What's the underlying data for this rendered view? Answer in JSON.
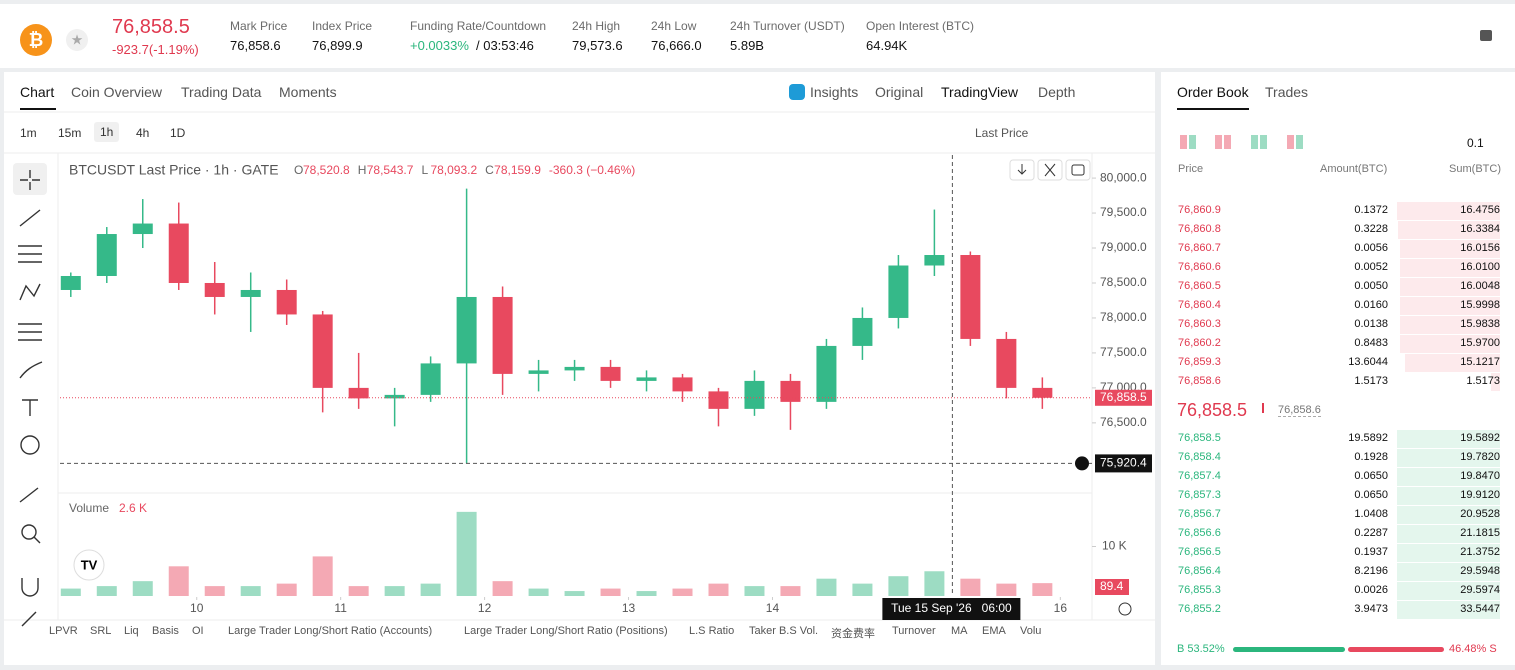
{
  "header": {
    "price": "76,858.5",
    "change": "-923.7(-1.19%)",
    "stats": [
      {
        "label": "Mark Price",
        "value": "76,858.6"
      },
      {
        "label": "Index Price",
        "value": "76,899.9"
      },
      {
        "label": "Funding Rate/Countdown",
        "value": "+0.0033%",
        "extra": " / 03:53:46"
      },
      {
        "label": "24h High",
        "value": "79,573.6"
      },
      {
        "label": "24h Low",
        "value": "76,666.0"
      },
      {
        "label": "24h Turnover (USDT)",
        "value": "5.89B"
      },
      {
        "label": "Open Interest (BTC)",
        "value": "64.94K"
      }
    ]
  },
  "tabs": [
    "Chart",
    "Coin Overview",
    "Trading Data",
    "Moments"
  ],
  "views": [
    "Insights",
    "Original",
    "TradingView",
    "Depth"
  ],
  "intervals": [
    "1m",
    "15m",
    "1h",
    "4h",
    "1D"
  ],
  "price_type": "Last Price",
  "indicators": [
    "LPVR",
    "SRL",
    "Liq",
    "Basis",
    "OI",
    "Large Trader Long/Short Ratio (Accounts)",
    "Large Trader Long/Short Ratio (Positions)",
    "L.S Ratio",
    "Taker B.S Vol.",
    "资金费率",
    "Turnover",
    "MA",
    "EMA",
    "Volu"
  ],
  "chart_data": {
    "type": "candlestick",
    "title": "BTCUSDT Last Price · 1h · GATE",
    "ohlc": [
      {
        "key": "O",
        "value": "78,520.8"
      },
      {
        "key": "H",
        "value": "78,543.7"
      },
      {
        "key": "L",
        "value": "78,093.2"
      },
      {
        "key": "C",
        "value": "78,159.9"
      }
    ],
    "change": "-360.3 (−0.46%)",
    "x": [
      9.125,
      9.375,
      9.625,
      9.875,
      10.125,
      10.375,
      10.625,
      10.875,
      11.125,
      11.375,
      11.625,
      11.875,
      12.125,
      12.375,
      12.625,
      12.875,
      13.125,
      13.375,
      13.625,
      13.875,
      14.125,
      14.375,
      14.625,
      14.875,
      15.125,
      15.375,
      15.625,
      15.875
    ],
    "open": [
      78400,
      78600,
      79200,
      79350,
      78500,
      78300,
      78400,
      78050,
      77000,
      76850,
      76900,
      77350,
      78300,
      77200,
      77250,
      77300,
      77100,
      77150,
      76950,
      76700,
      77100,
      76800,
      77600,
      78000,
      78750,
      78900,
      77700,
      77000
    ],
    "high": [
      78650,
      79300,
      79700,
      79650,
      78800,
      78650,
      78550,
      78100,
      77500,
      77000,
      77450,
      79850,
      78450,
      77400,
      77400,
      77400,
      77250,
      77200,
      77000,
      77250,
      77200,
      77700,
      78150,
      78900,
      79550,
      78950,
      77800,
      77150
    ],
    "low": [
      78300,
      78500,
      79000,
      78400,
      78050,
      77800,
      77900,
      76650,
      76700,
      76450,
      76800,
      75920,
      76900,
      76950,
      77100,
      77000,
      76950,
      76800,
      76450,
      76600,
      76400,
      76700,
      77400,
      77850,
      78600,
      77600,
      76850,
      76700
    ],
    "close": [
      78600,
      79200,
      79350,
      78500,
      78300,
      78400,
      78050,
      77000,
      76850,
      76900,
      77350,
      78300,
      77200,
      77250,
      77300,
      77100,
      77150,
      76950,
      76700,
      77100,
      76800,
      77600,
      78000,
      78750,
      78900,
      77700,
      77000,
      76858.5
    ],
    "volume": [
      1.5,
      2,
      3,
      6,
      2,
      2,
      2.5,
      8,
      2,
      2,
      2.5,
      17,
      3,
      1.5,
      1,
      1.5,
      1,
      1.5,
      2.5,
      2,
      2,
      3.5,
      2.5,
      4,
      5,
      3.5,
      2.5,
      2.6
    ],
    "volume_title": "Volume",
    "volume_value": "2.6 K",
    "volume_current": "89.4",
    "up_color": "#35b989",
    "down_color": "#e8495f",
    "up_volume_color": "#9ddcc3",
    "down_volume_color": "#f4a9b4",
    "xlim": [
      9.05,
      16.22
    ],
    "xticks": [
      10,
      11,
      12,
      13,
      14,
      16
    ],
    "ylim": [
      75540,
      80330
    ],
    "yticks": [
      {
        "value": 76500,
        "label": "76,500.0"
      },
      {
        "value": 77000,
        "label": "77,000.0"
      },
      {
        "value": 77500,
        "label": "77,500.0"
      },
      {
        "value": 78000,
        "label": "78,000.0"
      },
      {
        "value": 78500,
        "label": "78,500.0"
      },
      {
        "value": 79000,
        "label": "79,000.0"
      },
      {
        "value": 79500,
        "label": "79,500.0"
      },
      {
        "value": 80000,
        "label": "80,000.0"
      }
    ],
    "vlim": [
      0,
      19.8
    ],
    "vticks": [
      {
        "value": 10,
        "label": "10 K"
      }
    ],
    "last_price": {
      "value": 76858.5,
      "label": "76,858.5"
    },
    "crosshair_price": {
      "value": 75920.4,
      "label": "75,920.4"
    },
    "crosshair_time": {
      "value": 15.25,
      "label": "Tue 15 Sep '26   06:00"
    }
  },
  "order_book": {
    "tabs": [
      "Order Book",
      "Trades"
    ],
    "precision": "0.1",
    "columns": [
      "Price",
      "Amount(BTC)",
      "Sum(BTC)"
    ],
    "asks": [
      [
        "76,860.9",
        "0.1372",
        "16.4756"
      ],
      [
        "76,860.8",
        "0.3228",
        "16.3384"
      ],
      [
        "76,860.7",
        "0.0056",
        "16.0156"
      ],
      [
        "76,860.6",
        "0.0052",
        "16.0100"
      ],
      [
        "76,860.5",
        "0.0050",
        "16.0048"
      ],
      [
        "76,860.4",
        "0.0160",
        "15.9998"
      ],
      [
        "76,860.3",
        "0.0138",
        "15.9838"
      ],
      [
        "76,860.2",
        "0.8483",
        "15.9700"
      ],
      [
        "76,859.3",
        "13.6044",
        "15.1217"
      ],
      [
        "76,858.6",
        "1.5173",
        "1.5173"
      ]
    ],
    "mid_price": "76,858.5",
    "mark_price": "76,858.6",
    "bids": [
      [
        "76,858.5",
        "19.5892",
        "19.5892"
      ],
      [
        "76,858.4",
        "0.1928",
        "19.7820"
      ],
      [
        "76,857.4",
        "0.0650",
        "19.8470"
      ],
      [
        "76,857.3",
        "0.0650",
        "19.9120"
      ],
      [
        "76,856.7",
        "1.0408",
        "20.9528"
      ],
      [
        "76,856.6",
        "0.2287",
        "21.1815"
      ],
      [
        "76,856.5",
        "0.1937",
        "21.3752"
      ],
      [
        "76,856.4",
        "8.2196",
        "29.5948"
      ],
      [
        "76,855.3",
        "0.0026",
        "29.5974"
      ],
      [
        "76,855.2",
        "3.9473",
        "33.5447"
      ]
    ],
    "buy_ratio": "B 53.52%",
    "sell_ratio": "46.48% S"
  }
}
